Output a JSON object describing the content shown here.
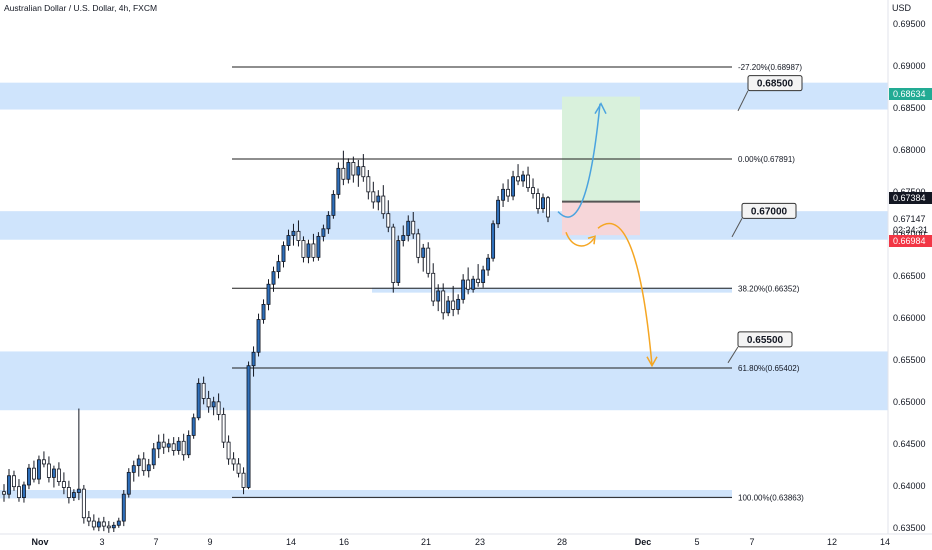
{
  "header": {
    "title": "Australian Dollar / U.S. Dollar, 4h, FXCM",
    "currency": "USD"
  },
  "chart_data": {
    "type": "candlestick",
    "title": "Australian Dollar / U.S. Dollar, 4h, FXCM",
    "y_range": [
      0.6345,
      0.6957
    ],
    "price_ticks": [
      "0.69500",
      "0.69000",
      "0.68500",
      "0.68000",
      "0.67500",
      "0.67000",
      "0.66500",
      "0.66000",
      "0.65500",
      "0.65000",
      "0.64500",
      "0.64000",
      "0.63500"
    ],
    "x_ticks": [
      "Nov",
      "3",
      "7",
      "9",
      "14",
      "16",
      "21",
      "23",
      "28",
      "Dec",
      "5",
      "7",
      "12",
      "14"
    ],
    "price_badges": [
      {
        "label": "0.68634",
        "value": 0.68634,
        "color": "#22ab94"
      },
      {
        "label": "0.67384",
        "value": 0.67384,
        "color": "#131722"
      },
      {
        "label": "0.67147",
        "value": 0.67147,
        "color": null
      },
      {
        "label": "02:24:21",
        "value": 0.67035,
        "color": null
      },
      {
        "label": "0.66984",
        "value": 0.66984,
        "color": "#f23645"
      }
    ],
    "zones": [
      {
        "from": 0.6848,
        "to": 0.688
      },
      {
        "from": 0.6693,
        "to": 0.6727
      },
      {
        "from": 0.649,
        "to": 0.656
      },
      {
        "from": 0.6385,
        "to": 0.6395
      },
      {
        "from": 0.663,
        "to": 0.6636
      }
    ],
    "fib_levels": [
      {
        "label": "-27.20%(0.68987)",
        "value": 0.68987
      },
      {
        "label": "0.00%(0.67891)",
        "value": 0.67891
      },
      {
        "label": "38.20%(0.66352)",
        "value": 0.66352
      },
      {
        "label": "61.80%(0.65402)",
        "value": 0.65402
      },
      {
        "label": "100.00%(0.63863)",
        "value": 0.63863
      }
    ],
    "callouts": [
      {
        "label": "0.68500",
        "value": 0.685
      },
      {
        "label": "0.67000",
        "value": 0.67
      },
      {
        "label": "0.65500",
        "value": 0.655
      }
    ],
    "position": {
      "entry": 0.67384,
      "target": 0.68634,
      "stop": 0.66984
    },
    "colors": {
      "up": "#2e6fba",
      "down": "#ffffff",
      "zone": "#cfe4fc",
      "profit": "#d9f1dc",
      "loss": "#f6d6d9",
      "blue_arrow": "#4aa3df",
      "orange_arrow": "#f5a623"
    },
    "candles": [
      [
        0.6393,
        0.6402,
        0.6381,
        0.639
      ],
      [
        0.639,
        0.642,
        0.6385,
        0.6412
      ],
      [
        0.6412,
        0.6418,
        0.6394,
        0.6399
      ],
      [
        0.6399,
        0.6408,
        0.6381,
        0.6386
      ],
      [
        0.6386,
        0.6405,
        0.638,
        0.6401
      ],
      [
        0.6401,
        0.6426,
        0.6396,
        0.6421
      ],
      [
        0.6421,
        0.643,
        0.6404,
        0.6408
      ],
      [
        0.6408,
        0.6436,
        0.6402,
        0.6431
      ],
      [
        0.6431,
        0.6441,
        0.6422,
        0.6426
      ],
      [
        0.6426,
        0.6435,
        0.6404,
        0.641
      ],
      [
        0.641,
        0.6424,
        0.6398,
        0.642
      ],
      [
        0.642,
        0.6428,
        0.64,
        0.6405
      ],
      [
        0.6405,
        0.6416,
        0.639,
        0.6398
      ],
      [
        0.6398,
        0.6406,
        0.6379,
        0.6386
      ],
      [
        0.6386,
        0.6396,
        0.6382,
        0.6392
      ],
      [
        0.6392,
        0.6492,
        0.6383,
        0.6396
      ],
      [
        0.6396,
        0.6401,
        0.6355,
        0.6362
      ],
      [
        0.6362,
        0.637,
        0.6352,
        0.6358
      ],
      [
        0.6358,
        0.6366,
        0.6347,
        0.6351
      ],
      [
        0.6351,
        0.6362,
        0.6346,
        0.6357
      ],
      [
        0.6357,
        0.6363,
        0.6346,
        0.6352
      ],
      [
        0.6352,
        0.6358,
        0.6344,
        0.635
      ],
      [
        0.635,
        0.6357,
        0.6345,
        0.6353
      ],
      [
        0.6353,
        0.6362,
        0.635,
        0.6358
      ],
      [
        0.6358,
        0.6395,
        0.6352,
        0.639
      ],
      [
        0.639,
        0.6421,
        0.6386,
        0.6416
      ],
      [
        0.6416,
        0.643,
        0.6405,
        0.6424
      ],
      [
        0.6424,
        0.6437,
        0.6411,
        0.6432
      ],
      [
        0.6432,
        0.644,
        0.6412,
        0.6418
      ],
      [
        0.6418,
        0.6432,
        0.641,
        0.6425
      ],
      [
        0.6425,
        0.6451,
        0.642,
        0.6444
      ],
      [
        0.6444,
        0.6461,
        0.6433,
        0.6452
      ],
      [
        0.6452,
        0.6462,
        0.6438,
        0.6446
      ],
      [
        0.6446,
        0.6456,
        0.644,
        0.645
      ],
      [
        0.645,
        0.6458,
        0.6436,
        0.6442
      ],
      [
        0.6442,
        0.6458,
        0.6437,
        0.6453
      ],
      [
        0.6453,
        0.6462,
        0.643,
        0.6437
      ],
      [
        0.6437,
        0.6466,
        0.6433,
        0.646
      ],
      [
        0.646,
        0.6486,
        0.6456,
        0.6481
      ],
      [
        0.6481,
        0.6528,
        0.6478,
        0.6522
      ],
      [
        0.6522,
        0.653,
        0.6497,
        0.6504
      ],
      [
        0.6504,
        0.6513,
        0.6487,
        0.6494
      ],
      [
        0.6494,
        0.6506,
        0.6484,
        0.65
      ],
      [
        0.65,
        0.651,
        0.6478,
        0.6485
      ],
      [
        0.6485,
        0.6493,
        0.6445,
        0.6452
      ],
      [
        0.6452,
        0.646,
        0.6425,
        0.6432
      ],
      [
        0.6432,
        0.644,
        0.6418,
        0.6426
      ],
      [
        0.6426,
        0.6433,
        0.641,
        0.6415
      ],
      [
        0.6415,
        0.6422,
        0.639,
        0.6398
      ],
      [
        0.6398,
        0.6548,
        0.6396,
        0.6543
      ],
      [
        0.6543,
        0.6566,
        0.653,
        0.6559
      ],
      [
        0.6559,
        0.6605,
        0.6554,
        0.6598
      ],
      [
        0.6598,
        0.6622,
        0.6593,
        0.6616
      ],
      [
        0.6616,
        0.6646,
        0.6609,
        0.664
      ],
      [
        0.664,
        0.6661,
        0.6631,
        0.6655
      ],
      [
        0.6655,
        0.6675,
        0.6647,
        0.6667
      ],
      [
        0.6667,
        0.6691,
        0.666,
        0.6686
      ],
      [
        0.6686,
        0.6705,
        0.668,
        0.6698
      ],
      [
        0.6698,
        0.6712,
        0.6686,
        0.6703
      ],
      [
        0.6703,
        0.6716,
        0.6685,
        0.6692
      ],
      [
        0.6692,
        0.6697,
        0.6666,
        0.6672
      ],
      [
        0.6672,
        0.6693,
        0.6665,
        0.6688
      ],
      [
        0.6688,
        0.67,
        0.6667,
        0.6672
      ],
      [
        0.6672,
        0.6702,
        0.6668,
        0.6697
      ],
      [
        0.6697,
        0.6711,
        0.6691,
        0.6706
      ],
      [
        0.6706,
        0.6727,
        0.67,
        0.6722
      ],
      [
        0.6722,
        0.6752,
        0.6718,
        0.6747
      ],
      [
        0.6747,
        0.6785,
        0.6742,
        0.6778
      ],
      [
        0.6778,
        0.6799,
        0.6758,
        0.6765
      ],
      [
        0.6765,
        0.679,
        0.676,
        0.6785
      ],
      [
        0.6785,
        0.6792,
        0.6761,
        0.677
      ],
      [
        0.677,
        0.6788,
        0.6756,
        0.678
      ],
      [
        0.678,
        0.6795,
        0.6762,
        0.6768
      ],
      [
        0.6768,
        0.6776,
        0.6741,
        0.675
      ],
      [
        0.675,
        0.6762,
        0.673,
        0.6738
      ],
      [
        0.6738,
        0.6752,
        0.6728,
        0.6745
      ],
      [
        0.6745,
        0.6758,
        0.6718,
        0.6724
      ],
      [
        0.6724,
        0.674,
        0.6702,
        0.6708
      ],
      [
        0.6708,
        0.6712,
        0.663,
        0.6642
      ],
      [
        0.6642,
        0.6698,
        0.6638,
        0.6692
      ],
      [
        0.6692,
        0.671,
        0.6685,
        0.6698
      ],
      [
        0.6698,
        0.6722,
        0.6691,
        0.6715
      ],
      [
        0.6715,
        0.6726,
        0.6694,
        0.67
      ],
      [
        0.67,
        0.6706,
        0.6665,
        0.6672
      ],
      [
        0.6672,
        0.6688,
        0.6655,
        0.6683
      ],
      [
        0.6683,
        0.669,
        0.6648,
        0.6653
      ],
      [
        0.6653,
        0.6665,
        0.6614,
        0.662
      ],
      [
        0.662,
        0.664,
        0.6608,
        0.6632
      ],
      [
        0.6632,
        0.6641,
        0.6598,
        0.6606
      ],
      [
        0.6606,
        0.6626,
        0.6602,
        0.662
      ],
      [
        0.662,
        0.6638,
        0.6602,
        0.661
      ],
      [
        0.661,
        0.6628,
        0.6604,
        0.6622
      ],
      [
        0.6622,
        0.6652,
        0.6617,
        0.6645
      ],
      [
        0.6645,
        0.666,
        0.6628,
        0.6634
      ],
      [
        0.6634,
        0.665,
        0.663,
        0.6646
      ],
      [
        0.6646,
        0.6664,
        0.6637,
        0.6642
      ],
      [
        0.6642,
        0.6662,
        0.6636,
        0.6657
      ],
      [
        0.6657,
        0.6676,
        0.665,
        0.6671
      ],
      [
        0.6671,
        0.6716,
        0.6667,
        0.6712
      ],
      [
        0.6712,
        0.6745,
        0.6707,
        0.674
      ],
      [
        0.674,
        0.676,
        0.6732,
        0.6753
      ],
      [
        0.6753,
        0.6765,
        0.6738,
        0.6745
      ],
      [
        0.6745,
        0.6775,
        0.674,
        0.6768
      ],
      [
        0.6768,
        0.6783,
        0.6758,
        0.6763
      ],
      [
        0.6763,
        0.6775,
        0.6756,
        0.677
      ],
      [
        0.677,
        0.678,
        0.675,
        0.6755
      ],
      [
        0.6755,
        0.6766,
        0.6742,
        0.6748
      ],
      [
        0.6748,
        0.6754,
        0.6724,
        0.673
      ],
      [
        0.673,
        0.6748,
        0.6725,
        0.6743
      ],
      [
        0.6743,
        0.6745,
        0.6714,
        0.672
      ]
    ]
  },
  "notes": {
    "countdown": "02:24:21"
  }
}
